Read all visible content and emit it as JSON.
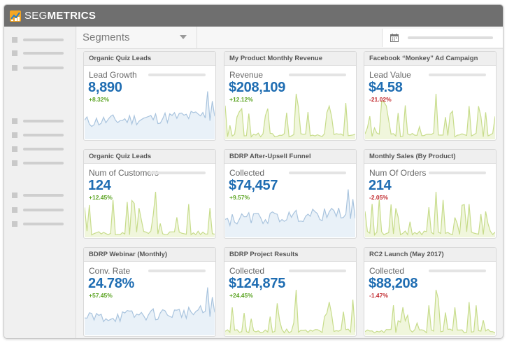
{
  "app": {
    "logo_prefix": "SEG",
    "logo_suffix": "METRICS"
  },
  "toolbar": {
    "segment_select": "Segments"
  },
  "colors": {
    "value_blue": "#1f6db2",
    "positive_green": "#5aa321",
    "negative_red": "#c0282d",
    "spark_blue": "#a9c4de",
    "spark_green": "#c7dc8b"
  },
  "cards": [
    {
      "title": "Organic Quiz Leads",
      "label": "Lead Growth",
      "value": "8,890",
      "change": "+8.32%",
      "trend": "up",
      "spark": "blue"
    },
    {
      "title": "My Product Monthly Revenue",
      "label": "Revenue",
      "value": "$208,109",
      "change": "+12.12%",
      "trend": "up",
      "spark": "green"
    },
    {
      "title": "Facebook “Monkey” Ad Campaign",
      "label": "Lead Value",
      "value": "$4.58",
      "change": "-21.02%",
      "trend": "down",
      "spark": "green"
    },
    {
      "title": "Organic Quiz Leads",
      "label": "Num of Customers",
      "value": "124",
      "change": "+12.45%",
      "trend": "up",
      "spark": "green"
    },
    {
      "title": "BDRP After-Upsell Funnel",
      "label": "Collected",
      "value": "$74,457",
      "change": "+9.57%",
      "trend": "up",
      "spark": "blue"
    },
    {
      "title": "Monthly Sales (By Product)",
      "label": "Num Of Orders",
      "value": "214",
      "change": "-2.05%",
      "trend": "down",
      "spark": "green"
    },
    {
      "title": "BDRP Webinar (Monthly)",
      "label": "Conv. Rate",
      "value": "24.78%",
      "change": "+57.45%",
      "trend": "up",
      "spark": "blue"
    },
    {
      "title": "BDRP Project Results",
      "label": "Collected",
      "value": "$124,875",
      "change": "+24.45%",
      "trend": "up",
      "spark": "green"
    },
    {
      "title": "RC2 Launch (May 2017)",
      "label": "Collected",
      "value": "$88,208",
      "change": "-1.47%",
      "trend": "down",
      "spark": "green"
    }
  ]
}
